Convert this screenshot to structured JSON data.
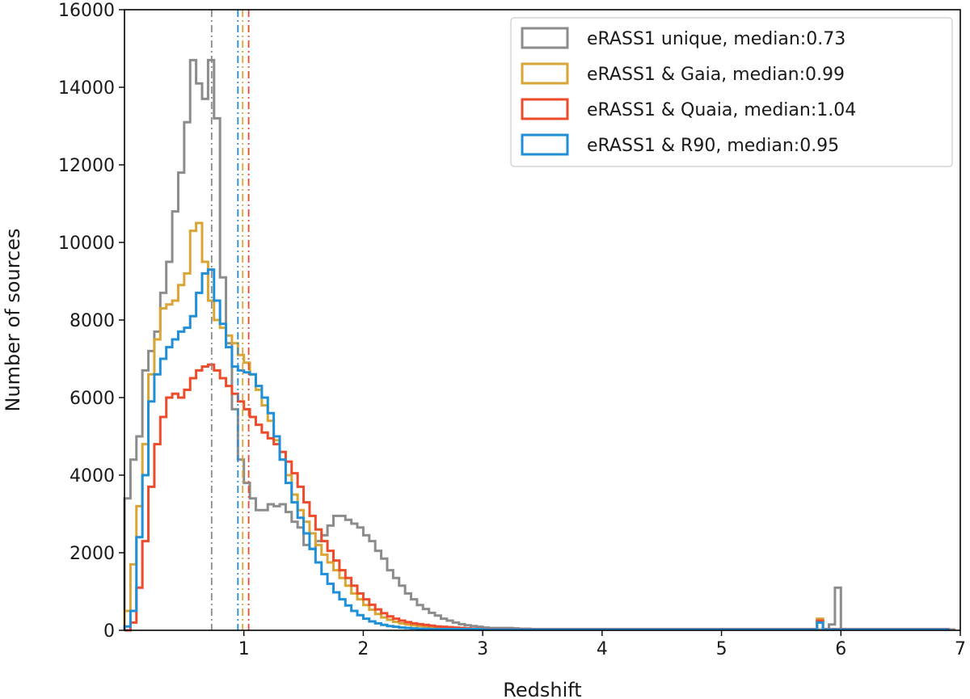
{
  "chart_data": {
    "type": "histogram-step",
    "title": "",
    "xlabel": "Redshift",
    "ylabel": "Number of sources",
    "xlim": [
      0,
      7
    ],
    "ylim": [
      0,
      16000
    ],
    "xticks": [
      1,
      2,
      3,
      4,
      5,
      6,
      7
    ],
    "yticks": [
      0,
      2000,
      4000,
      6000,
      8000,
      10000,
      12000,
      14000,
      16000
    ],
    "grid": false,
    "legend_position": "top-right",
    "bin_edges": [
      0.0,
      0.05,
      0.1,
      0.15,
      0.2,
      0.25,
      0.3,
      0.35,
      0.4,
      0.45,
      0.5,
      0.55,
      0.6,
      0.65,
      0.7,
      0.75,
      0.8,
      0.85,
      0.9,
      0.95,
      1.0,
      1.05,
      1.1,
      1.15,
      1.2,
      1.25,
      1.3,
      1.35,
      1.4,
      1.45,
      1.5,
      1.55,
      1.6,
      1.65,
      1.7,
      1.75,
      1.8,
      1.85,
      1.9,
      1.95,
      2.0,
      2.05,
      2.1,
      2.15,
      2.2,
      2.25,
      2.3,
      2.35,
      2.4,
      2.45,
      2.5,
      2.55,
      2.6,
      2.65,
      2.7,
      2.75,
      2.8,
      2.85,
      2.9,
      2.95,
      3.0,
      3.05,
      3.1,
      3.15,
      3.2,
      3.25,
      3.3,
      3.35,
      3.4,
      3.45,
      3.5,
      3.55,
      3.6,
      3.65,
      3.7,
      3.75,
      3.8,
      3.85,
      3.9,
      3.95,
      4.0,
      4.05,
      4.1,
      4.15,
      4.2,
      4.25,
      4.3,
      4.35,
      4.4,
      4.45,
      4.5,
      4.55,
      4.6,
      4.65,
      4.7,
      4.75,
      4.8,
      4.85,
      4.9,
      4.95,
      5.0,
      5.05,
      5.1,
      5.15,
      5.2,
      5.25,
      5.3,
      5.35,
      5.4,
      5.45,
      5.5,
      5.55,
      5.6,
      5.65,
      5.7,
      5.75,
      5.8,
      5.85,
      5.9,
      5.95,
      6.0,
      6.05,
      6.1,
      6.15,
      6.2,
      6.25,
      6.3,
      6.35,
      6.4,
      6.45,
      6.5,
      6.55,
      6.6,
      6.65,
      6.7,
      6.75,
      6.8,
      6.85,
      6.9,
      6.95,
      7.0
    ],
    "series": [
      {
        "name": "eRASS1 unique, median:0.73",
        "color": "#8c8c8c",
        "median": 0.73,
        "values": [
          3400,
          4400,
          5000,
          6700,
          7200,
          7700,
          8700,
          9500,
          10800,
          11800,
          13100,
          14700,
          14100,
          13700,
          14700,
          13200,
          9100,
          7400,
          5700,
          4400,
          3800,
          3400,
          3100,
          3100,
          3250,
          3200,
          3250,
          3050,
          2800,
          2650,
          2200,
          2100,
          2300,
          2450,
          2700,
          2950,
          2950,
          2850,
          2750,
          2650,
          2450,
          2300,
          2050,
          1850,
          1550,
          1350,
          1150,
          950,
          800,
          650,
          550,
          450,
          380,
          300,
          250,
          200,
          160,
          130,
          110,
          90,
          70,
          60,
          60,
          60,
          60,
          50,
          40,
          40,
          30,
          30,
          30,
          30,
          30,
          30,
          30,
          20,
          20,
          20,
          20,
          20,
          20,
          20,
          20,
          20,
          20,
          20,
          20,
          20,
          20,
          20,
          20,
          20,
          20,
          20,
          20,
          20,
          20,
          20,
          20,
          20,
          20,
          20,
          20,
          20,
          20,
          20,
          20,
          20,
          20,
          20,
          20,
          20,
          20,
          20,
          20,
          20,
          20,
          20,
          150,
          1100,
          20,
          20,
          20,
          20,
          20,
          20,
          20,
          20,
          20,
          20,
          20,
          20,
          20,
          20,
          20,
          20,
          20,
          20,
          20
        ]
      },
      {
        "name": "eRASS1 & Gaia, median:0.99",
        "color": "#d9a636",
        "median": 0.99,
        "values": [
          500,
          1700,
          3200,
          4800,
          6600,
          7500,
          8300,
          8400,
          8500,
          8900,
          9200,
          10300,
          10500,
          9500,
          8500,
          8000,
          7800,
          7600,
          7400,
          7100,
          6900,
          6600,
          6200,
          5800,
          5400,
          4900,
          4400,
          4000,
          3500,
          3100,
          2800,
          2500,
          2200,
          1950,
          1750,
          1550,
          1350,
          1150,
          950,
          800,
          650,
          530,
          420,
          330,
          270,
          220,
          180,
          150,
          130,
          110,
          100,
          90,
          80,
          70,
          60,
          50,
          50,
          40,
          40,
          40,
          30,
          30,
          30,
          30,
          30,
          30,
          30,
          30,
          30,
          30,
          30,
          30,
          30,
          30,
          30,
          30,
          30,
          30,
          30,
          30,
          30,
          30,
          30,
          30,
          30,
          30,
          30,
          30,
          30,
          30,
          30,
          30,
          30,
          30,
          30,
          30,
          30,
          30,
          30,
          30,
          30,
          30,
          30,
          30,
          30,
          30,
          30,
          30,
          30,
          30,
          30,
          30,
          30,
          30,
          30,
          30,
          300,
          30,
          30,
          30,
          30,
          30,
          30,
          30,
          30,
          30,
          30,
          30,
          30,
          30,
          30,
          30,
          30,
          30,
          30,
          30,
          30,
          30
        ]
      },
      {
        "name": "eRASS1 & Quaia, median:1.04",
        "color": "#ee4b2b",
        "median": 1.04,
        "values": [
          0,
          200,
          1100,
          2300,
          3700,
          4800,
          5500,
          6000,
          6100,
          6000,
          6200,
          6500,
          6700,
          6800,
          6850,
          6700,
          6500,
          6300,
          6100,
          5900,
          5700,
          5500,
          5300,
          5100,
          4950,
          4800,
          4600,
          4350,
          4050,
          3700,
          3300,
          2950,
          2600,
          2300,
          2050,
          1800,
          1550,
          1350,
          1150,
          950,
          800,
          660,
          540,
          440,
          360,
          300,
          250,
          210,
          180,
          160,
          140,
          120,
          100,
          90,
          80,
          70,
          60,
          50,
          40,
          40,
          30,
          30,
          30,
          30,
          30,
          30,
          30,
          30,
          30,
          30,
          30,
          30,
          30,
          30,
          30,
          30,
          30,
          30,
          30,
          30,
          30,
          30,
          30,
          30,
          30,
          30,
          30,
          30,
          30,
          30,
          30,
          30,
          30,
          30,
          30,
          30,
          30,
          30,
          30,
          30,
          30,
          30,
          30,
          30,
          30,
          30,
          30,
          30,
          30,
          30,
          30,
          30,
          30,
          30,
          30,
          30,
          250,
          30,
          30,
          30,
          30,
          30,
          30,
          30,
          30,
          30,
          30,
          30,
          30,
          30,
          30,
          30,
          30,
          30,
          30,
          30,
          30,
          30
        ]
      },
      {
        "name": "eRASS1 & R90, median:0.95",
        "color": "#1f8fd8",
        "median": 0.95,
        "values": [
          100,
          500,
          2400,
          4000,
          5900,
          6600,
          7000,
          7300,
          7500,
          7700,
          7800,
          8100,
          8700,
          9200,
          9300,
          8500,
          7900,
          7300,
          6800,
          6700,
          6650,
          6600,
          6300,
          6000,
          5600,
          5000,
          4400,
          3800,
          3300,
          2900,
          2500,
          2100,
          1750,
          1450,
          1200,
          980,
          800,
          640,
          500,
          390,
          300,
          230,
          180,
          140,
          110,
          90,
          70,
          60,
          50,
          40,
          40,
          30,
          30,
          30,
          30,
          30,
          30,
          30,
          30,
          30,
          20,
          20,
          20,
          20,
          20,
          20,
          20,
          20,
          20,
          20,
          20,
          20,
          20,
          20,
          20,
          20,
          20,
          20,
          20,
          20,
          20,
          20,
          20,
          20,
          20,
          20,
          20,
          20,
          20,
          20,
          20,
          20,
          20,
          20,
          20,
          20,
          20,
          20,
          20,
          20,
          20,
          20,
          20,
          20,
          20,
          20,
          20,
          20,
          20,
          20,
          20,
          20,
          20,
          20,
          20,
          20,
          200,
          20,
          20,
          20,
          20,
          20,
          20,
          20,
          20,
          20,
          20,
          20,
          20,
          20,
          20,
          20,
          20,
          20,
          20,
          20,
          20,
          20
        ]
      }
    ]
  }
}
